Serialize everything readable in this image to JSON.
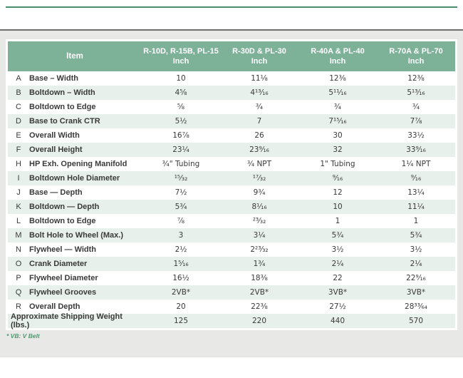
{
  "colors": {
    "header_green": "#7db198",
    "stripe_green": "#e7f0ea",
    "accent_line_green": "#43906a",
    "panel_gray": "#e8e8e6",
    "footnote_green": "#4f9a72",
    "text": "#3a3a3a"
  },
  "chart_data": {
    "type": "table",
    "item_header": "Item",
    "columns": [
      {
        "line1": "R-10D, R-15B, PL-15",
        "line2": "Inch"
      },
      {
        "line1": "R-30D & PL-30",
        "line2": "Inch"
      },
      {
        "line1": "R-40A & PL-40",
        "line2": "Inch"
      },
      {
        "line1": "R-70A & PL-70",
        "line2": "Inch"
      }
    ],
    "rows": [
      {
        "letter": "A",
        "item": "Base – Width",
        "values": [
          "10",
          "11⅛",
          "12⅜",
          "12⅜"
        ]
      },
      {
        "letter": "B",
        "item": "Boltdown – Width",
        "values": [
          "4⅝",
          "4¹³⁄₁₆",
          "5¹¹⁄₁₆",
          "5¹³⁄₁₆"
        ]
      },
      {
        "letter": "C",
        "item": "Boltdown to Edge",
        "values": [
          "⅝",
          "¾",
          "¾",
          "¾"
        ]
      },
      {
        "letter": "D",
        "item": "Base to Crank CTR",
        "values": [
          "5½",
          "7",
          "7¹⁵⁄₁₆",
          "7⅞"
        ]
      },
      {
        "letter": "E",
        "item": "Overall Width",
        "values": [
          "16⅞",
          "26",
          "30",
          "33½"
        ]
      },
      {
        "letter": "F",
        "item": "Overall Height",
        "values": [
          "23¼",
          "23⁹⁄₁₆",
          "32",
          "33⁹⁄₁₆"
        ]
      },
      {
        "letter": "H",
        "item": "HP Exh. Opening Manifold",
        "values": [
          "¾\" Tubing",
          "¾ NPT",
          "1\" Tubing",
          "1¼ NPT"
        ]
      },
      {
        "letter": "I",
        "item": "Boltdown Hole Diameter",
        "values": [
          "¹⁵⁄₃₂",
          "¹⁷⁄₃₂",
          "⁹⁄₁₆",
          "⁹⁄₁₆"
        ]
      },
      {
        "letter": "J",
        "item": "Base — Depth",
        "values": [
          "7½",
          "9¾",
          "12",
          "13¼"
        ]
      },
      {
        "letter": "K",
        "item": "Boltdown — Depth",
        "values": [
          "5¾",
          "8¹⁄₁₆",
          "10",
          "11¼"
        ]
      },
      {
        "letter": "L",
        "item": "Boltdown to Edge",
        "values": [
          "⅞",
          "²³⁄₃₂",
          "1",
          "1"
        ]
      },
      {
        "letter": "M",
        "item": "Bolt Hole to Wheel (Max.)",
        "values": [
          "3",
          "3¼",
          "5¾",
          "5¾"
        ]
      },
      {
        "letter": "N",
        "item": "Flywheel — Width",
        "values": [
          "2½",
          "2²³⁄₃₂",
          "3½",
          "3½"
        ]
      },
      {
        "letter": "O",
        "item": "Crank Diameter",
        "values": [
          "1⁵⁄₁₆",
          "1¾",
          "2¼",
          "2¼"
        ]
      },
      {
        "letter": "P",
        "item": "Flywheel Diameter",
        "values": [
          "16½",
          "18⅜",
          "22",
          "22⁹⁄₁₆"
        ]
      },
      {
        "letter": "Q",
        "item": "Flywheel Grooves",
        "values": [
          "2VB*",
          "2VB*",
          "3VB*",
          "3VB*"
        ]
      },
      {
        "letter": "R",
        "item": "Overall Depth",
        "values": [
          "20",
          "22⅜",
          "27½",
          "28³³⁄₆₄"
        ]
      }
    ],
    "summary": {
      "label": "Approximate Shipping Weight (lbs.)",
      "values": [
        "125",
        "220",
        "440",
        "570"
      ]
    },
    "footnote": "* VB: V Belt"
  }
}
